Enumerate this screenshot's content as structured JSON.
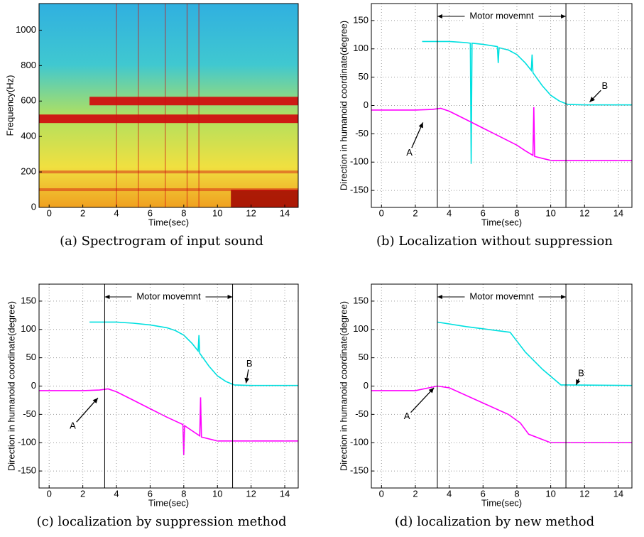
{
  "chart_data": [
    {
      "type": "spectrogram",
      "caption": "(a) Spectrogram of input sound",
      "xlabel": "Time(sec)",
      "ylabel": "Frequency(Hz)",
      "xlim": [
        -0.6,
        14.8
      ],
      "ylim": [
        0,
        1150
      ],
      "xticks": [
        0,
        2,
        4,
        6,
        8,
        10,
        12,
        14
      ],
      "yticks": [
        0,
        200,
        400,
        600,
        800,
        1000
      ],
      "grid": false,
      "bands": [
        {
          "y": 600,
          "x": [
            2.4,
            14.8
          ]
        },
        {
          "y": 500,
          "x": [
            -0.6,
            14.8
          ]
        },
        {
          "y": 200,
          "x": [
            -0.6,
            14.8
          ]
        },
        {
          "y": 100,
          "x": [
            -0.6,
            14.8
          ]
        }
      ],
      "vertical_lines": [
        4,
        5.3,
        6.9,
        8.2,
        8.9
      ],
      "regions": [
        {
          "x": [
            10.8,
            14.8
          ],
          "y": [
            0,
            100
          ]
        }
      ],
      "color": "#d01010"
    },
    {
      "type": "line",
      "caption": "(b) Localization without suppression",
      "xlabel": "Time(sec)",
      "ylabel": "Direction in humanoid coordinate(degree)",
      "xlim": [
        -0.6,
        14.8
      ],
      "ylim": [
        -180,
        180
      ],
      "xticks": [
        0,
        2,
        4,
        6,
        8,
        10,
        12,
        14
      ],
      "yticks": [
        -150,
        -100,
        -50,
        0,
        50,
        100,
        150
      ],
      "grid": true,
      "vlines": [
        3.3,
        10.9
      ],
      "annotations": [
        "Motor movemnt",
        "A",
        "B"
      ],
      "series": [
        {
          "color": "#00e0e0",
          "x": [
            2.4,
            3,
            4,
            5,
            5.25,
            5.3,
            5.35,
            6,
            6.85,
            6.9,
            6.95,
            7.5,
            8,
            8.5,
            8.85,
            8.9,
            8.95,
            9.5,
            10,
            10.5,
            11,
            12,
            13,
            14.8
          ],
          "values": [
            113,
            113,
            113,
            111,
            110,
            -103,
            110,
            108,
            104,
            75,
            102,
            98,
            90,
            75,
            62,
            90,
            58,
            35,
            18,
            8,
            2,
            1,
            1,
            1
          ]
        },
        {
          "color": "#ff00ff",
          "x": [
            -0.6,
            1,
            2,
            3,
            3.5,
            4,
            5,
            6,
            7,
            8,
            8.5,
            8.95,
            9,
            9.05,
            10,
            11,
            12,
            14.8
          ],
          "values": [
            -8,
            -8,
            -8,
            -7,
            -5,
            -10,
            -25,
            -40,
            -55,
            -70,
            -80,
            -88,
            -3,
            -90,
            -97,
            -97,
            -97,
            -97
          ]
        }
      ]
    },
    {
      "type": "line",
      "caption": "(c) localization by suppression method",
      "xlabel": "Time(sec)",
      "ylabel": "Direction in humanoid coordinate(degree)",
      "xlim": [
        -0.6,
        14.8
      ],
      "ylim": [
        -180,
        180
      ],
      "xticks": [
        0,
        2,
        4,
        6,
        8,
        10,
        12,
        14
      ],
      "yticks": [
        -150,
        -100,
        -50,
        0,
        50,
        100,
        150
      ],
      "grid": true,
      "vlines": [
        3.3,
        10.9
      ],
      "annotations": [
        "Motor movemnt",
        "A",
        "B"
      ],
      "series": [
        {
          "color": "#00e0e0",
          "x": [
            2.4,
            3,
            4,
            5,
            6,
            7,
            7.5,
            8,
            8.5,
            8.85,
            8.9,
            8.95,
            9.5,
            10,
            10.5,
            11,
            12,
            13,
            14.8
          ],
          "values": [
            113,
            113,
            113,
            111,
            108,
            103,
            98,
            90,
            75,
            62,
            90,
            58,
            35,
            18,
            8,
            2,
            1,
            1,
            1
          ]
        },
        {
          "color": "#ff00ff",
          "x": [
            -0.6,
            1,
            2,
            3,
            3.5,
            4,
            5,
            6,
            7,
            7.95,
            8,
            8.05,
            8.95,
            9,
            9.05,
            10,
            11,
            12,
            14.8
          ],
          "values": [
            -8,
            -8,
            -8,
            -7,
            -5,
            -10,
            -25,
            -40,
            -55,
            -68,
            -122,
            -70,
            -88,
            -20,
            -90,
            -97,
            -97,
            -97,
            -97
          ]
        }
      ]
    },
    {
      "type": "line",
      "caption": "(d) localization by new method",
      "xlabel": "Time(sec)",
      "ylabel": "Direction in humanoid coordinate(degree)",
      "xlim": [
        -0.6,
        14.8
      ],
      "ylim": [
        -180,
        180
      ],
      "xticks": [
        0,
        2,
        4,
        6,
        8,
        10,
        12,
        14
      ],
      "yticks": [
        -150,
        -100,
        -50,
        0,
        50,
        100,
        150
      ],
      "grid": true,
      "vlines": [
        3.3,
        10.9
      ],
      "annotations": [
        "Motor movemnt",
        "A",
        "B"
      ],
      "series": [
        {
          "color": "#00e0e0",
          "x": [
            3.3,
            5,
            7.6,
            8.5,
            9.5,
            10.6,
            11,
            14.8
          ],
          "values": [
            113,
            105,
            95,
            60,
            30,
            2,
            2,
            1
          ]
        },
        {
          "color": "#ff00ff",
          "x": [
            -0.6,
            2,
            3.3,
            4,
            6,
            7.5,
            8.2,
            8.7,
            10,
            14.8
          ],
          "values": [
            -8,
            -8,
            0,
            -3,
            -30,
            -50,
            -65,
            -85,
            -100,
            -100
          ]
        }
      ]
    }
  ]
}
